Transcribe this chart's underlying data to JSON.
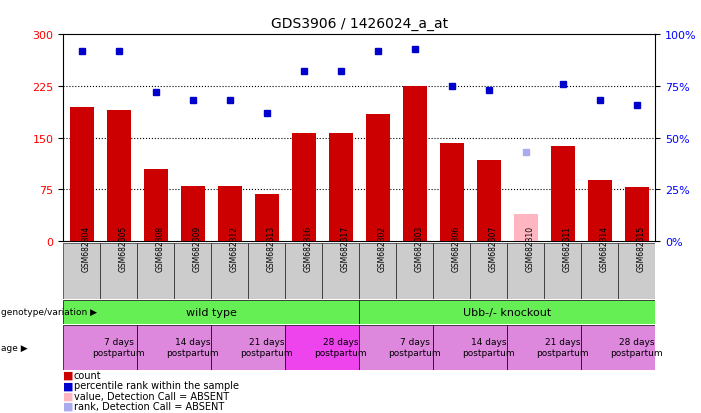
{
  "title": "GDS3906 / 1426024_a_at",
  "samples": [
    "GSM682304",
    "GSM682305",
    "GSM682308",
    "GSM682309",
    "GSM682312",
    "GSM682313",
    "GSM682316",
    "GSM682317",
    "GSM682302",
    "GSM682303",
    "GSM682306",
    "GSM682307",
    "GSM682310",
    "GSM682311",
    "GSM682314",
    "GSM682315"
  ],
  "bar_values": [
    195,
    190,
    105,
    80,
    80,
    68,
    157,
    157,
    185,
    225,
    143,
    118,
    40,
    138,
    88,
    78
  ],
  "bar_colors": [
    "#cc0000",
    "#cc0000",
    "#cc0000",
    "#cc0000",
    "#cc0000",
    "#cc0000",
    "#cc0000",
    "#cc0000",
    "#cc0000",
    "#cc0000",
    "#cc0000",
    "#cc0000",
    "#ffb6c1",
    "#cc0000",
    "#cc0000",
    "#cc0000"
  ],
  "rank_values": [
    92,
    92,
    72,
    68,
    68,
    62,
    82,
    82,
    92,
    93,
    75,
    73,
    43,
    76,
    68,
    66
  ],
  "rank_colors": [
    "#0000cc",
    "#0000cc",
    "#0000cc",
    "#0000cc",
    "#0000cc",
    "#0000cc",
    "#0000cc",
    "#0000cc",
    "#0000cc",
    "#0000cc",
    "#0000cc",
    "#0000cc",
    "#aaaaee",
    "#0000cc",
    "#0000cc",
    "#0000cc"
  ],
  "ylim_left": [
    0,
    300
  ],
  "ylim_right": [
    0,
    100
  ],
  "yticks_left": [
    0,
    75,
    150,
    225,
    300
  ],
  "yticks_right": [
    0,
    25,
    50,
    75,
    100
  ],
  "ytick_labels_left": [
    "0",
    "75",
    "150",
    "225",
    "300"
  ],
  "ytick_labels_right": [
    "0%",
    "25%",
    "50%",
    "75%",
    "100%"
  ],
  "hlines": [
    75,
    150,
    225
  ],
  "genotype_labels": [
    "wild type",
    "Ubb-/- knockout"
  ],
  "genotype_color": "#66ee55",
  "age_labels": [
    "7 days\npostpartum",
    "14 days\npostpartum",
    "21 days\npostpartum",
    "28 days\npostpartum",
    "7 days\npostpartum",
    "14 days\npostpartum",
    "21 days\npostpartum",
    "28 days\npostpartum"
  ],
  "age_colors": [
    "#dd88dd",
    "#dd88dd",
    "#dd88dd",
    "#ee44ee",
    "#dd88dd",
    "#dd88dd",
    "#dd88dd",
    "#dd88dd"
  ],
  "legend_items": [
    {
      "label": "count",
      "color": "#cc0000"
    },
    {
      "label": "percentile rank within the sample",
      "color": "#0000cc"
    },
    {
      "label": "value, Detection Call = ABSENT",
      "color": "#ffb6c1"
    },
    {
      "label": "rank, Detection Call = ABSENT",
      "color": "#aaaaee"
    }
  ]
}
